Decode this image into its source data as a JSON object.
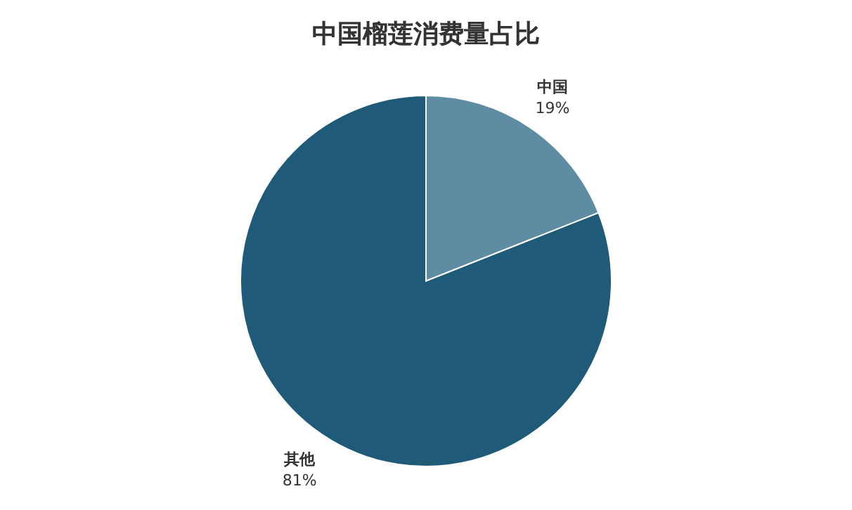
{
  "chart_data": {
    "type": "pie",
    "title": "中国榴莲消费量占比",
    "categories": [
      "中国",
      "其他"
    ],
    "values": [
      19,
      81
    ],
    "value_labels": [
      "19%",
      "81%"
    ],
    "colors": [
      "#5e8ca3",
      "#1f5a78"
    ]
  }
}
